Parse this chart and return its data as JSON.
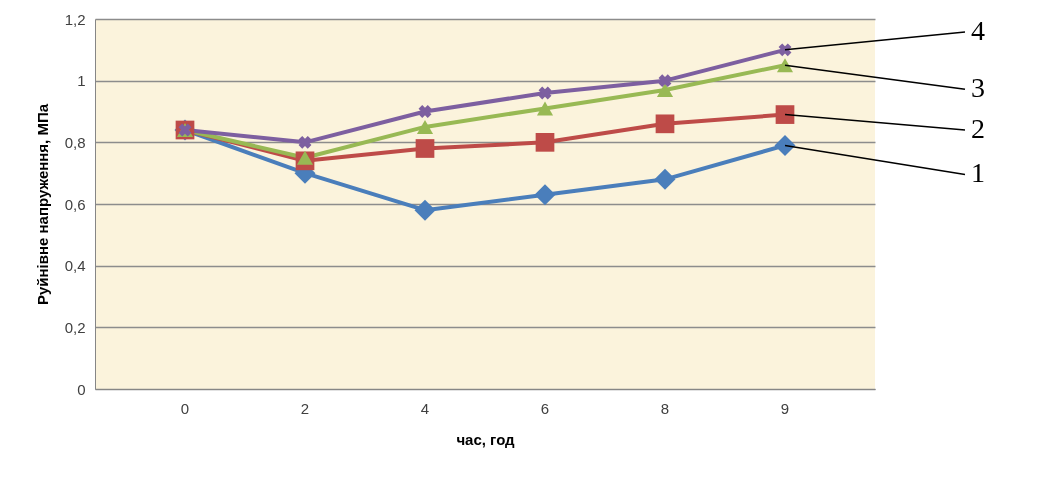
{
  "chart_data": {
    "type": "line",
    "xlabel": "час, год",
    "ylabel": "Руйнівне напруження, МПа",
    "categories": [
      "0",
      "2",
      "4",
      "6",
      "8",
      "9"
    ],
    "ylim": [
      0,
      1.2
    ],
    "yticks": [
      0,
      {
        "value": 0.2,
        "label": "0,2"
      },
      {
        "value": 0.4,
        "label": "0,4"
      },
      {
        "value": 0.6,
        "label": "0,6"
      },
      {
        "value": 0.8,
        "label": "0,8"
      },
      1,
      {
        "value": 1.2,
        "label": "1,2"
      }
    ],
    "grid": "y",
    "legend": false,
    "line_style": "solid",
    "series": [
      {
        "name": "1",
        "color": "#4a7ebb",
        "marker": "diamond",
        "values": [
          0.84,
          0.7,
          0.58,
          0.63,
          0.68,
          0.79
        ]
      },
      {
        "name": "2",
        "color": "#be4b48",
        "marker": "square",
        "values": [
          0.84,
          0.74,
          0.78,
          0.8,
          0.86,
          0.89
        ]
      },
      {
        "name": "3",
        "color": "#98b954",
        "marker": "triangle",
        "values": [
          0.84,
          0.75,
          0.85,
          0.91,
          0.97,
          1.05
        ]
      },
      {
        "name": "4",
        "color": "#7d5fa0",
        "marker": "cross",
        "values": [
          0.84,
          0.8,
          0.9,
          0.96,
          1.0,
          1.1
        ]
      }
    ]
  }
}
